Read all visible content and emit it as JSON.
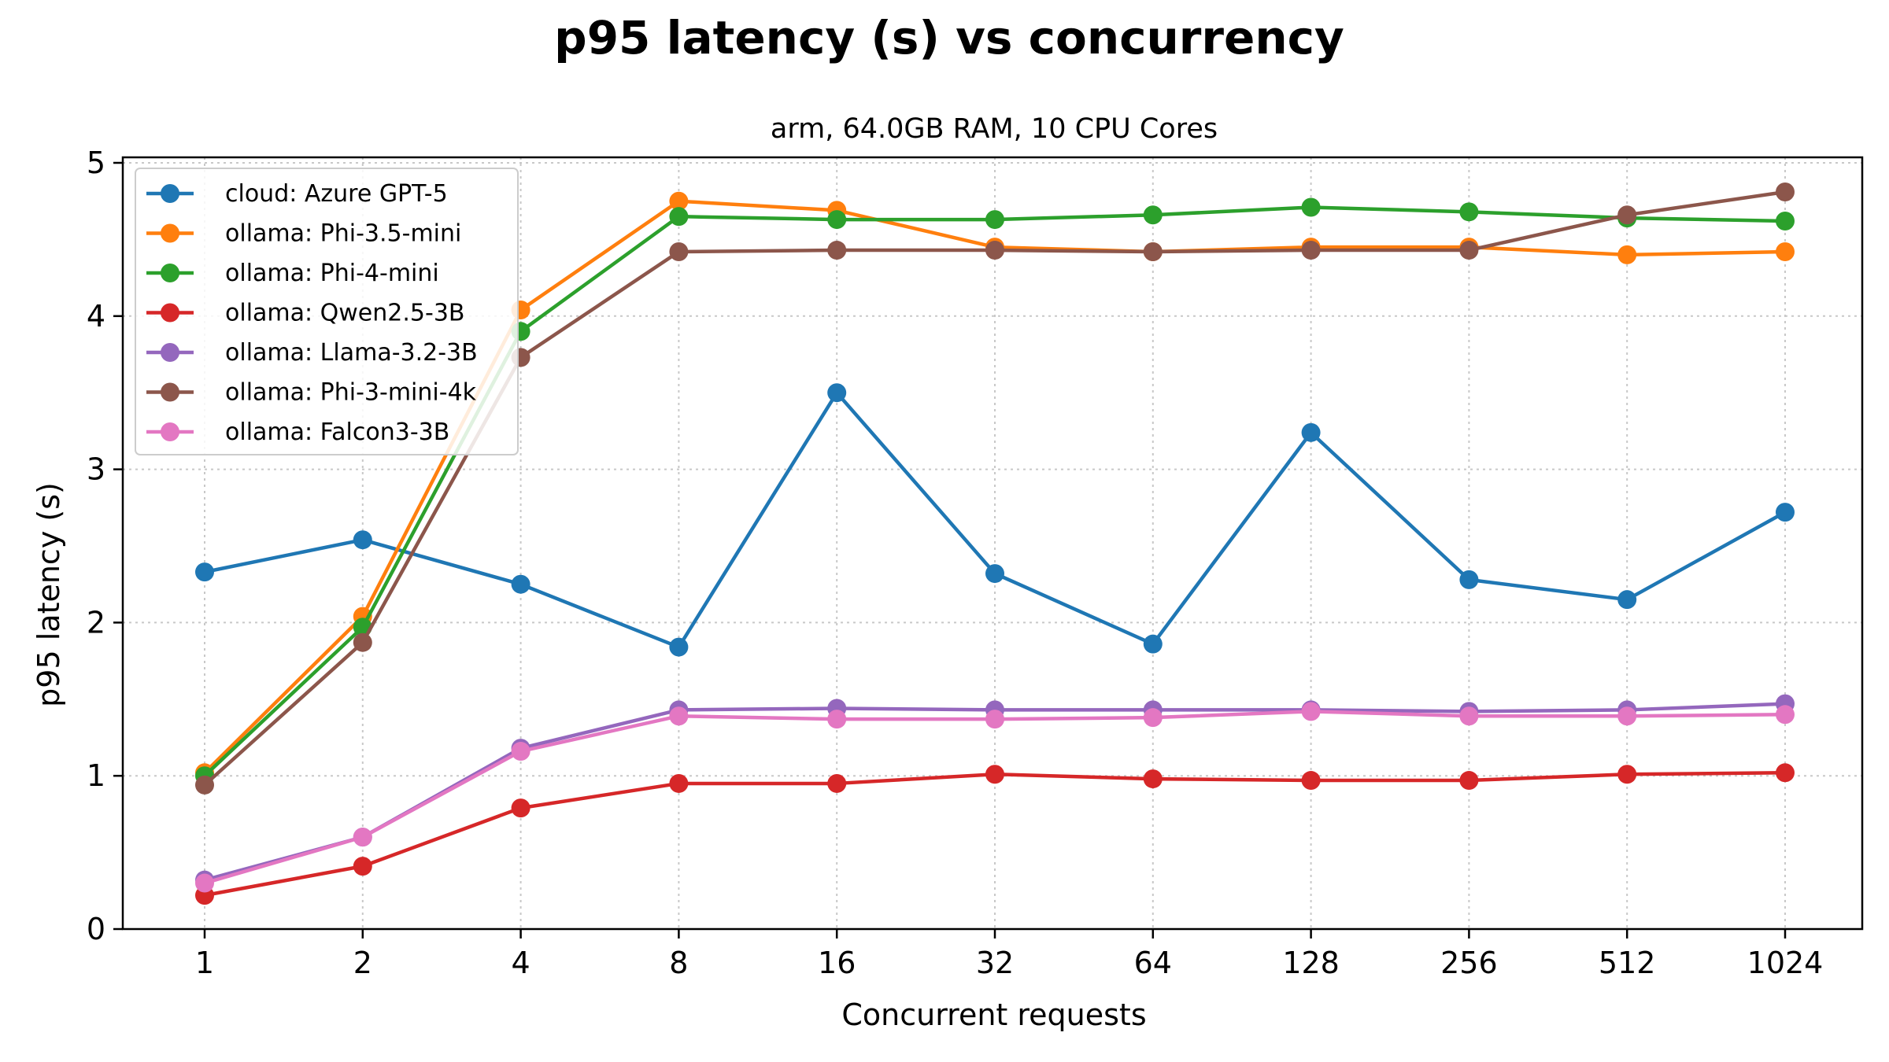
{
  "chart_data": {
    "type": "line",
    "title": "p95 latency (s) vs concurrency",
    "subtitle": "arm, 64.0GB RAM, 10 CPU Cores",
    "xlabel": "Concurrent requests",
    "ylabel": "p95 latency (s)",
    "x_scale": "log2",
    "categories": [
      "1",
      "2",
      "4",
      "8",
      "16",
      "32",
      "64",
      "128",
      "256",
      "512",
      "1024"
    ],
    "y_ticks": [
      "0",
      "1",
      "2",
      "3",
      "4",
      "5"
    ],
    "ylim": [
      0,
      5
    ],
    "grid": true,
    "legend_position": "upper-left",
    "series": [
      {
        "name": "cloud: Azure GPT-5",
        "color": "#1f77b4",
        "values": [
          2.33,
          2.54,
          2.25,
          1.84,
          3.5,
          2.32,
          1.86,
          3.24,
          2.28,
          2.15,
          2.72
        ]
      },
      {
        "name": "ollama: Phi-3.5-mini",
        "color": "#ff7f0e",
        "values": [
          1.02,
          2.04,
          4.04,
          4.75,
          4.69,
          4.45,
          4.42,
          4.45,
          4.45,
          4.4,
          4.42
        ]
      },
      {
        "name": "ollama: Phi-4-mini",
        "color": "#2ca02c",
        "values": [
          1.0,
          1.97,
          3.9,
          4.65,
          4.63,
          4.63,
          4.66,
          4.71,
          4.68,
          4.64,
          4.62
        ]
      },
      {
        "name": "ollama: Qwen2.5-3B",
        "color": "#d62728",
        "values": [
          0.22,
          0.41,
          0.79,
          0.95,
          0.95,
          1.01,
          0.98,
          0.97,
          0.97,
          1.01,
          1.02
        ]
      },
      {
        "name": "ollama: Llama-3.2-3B",
        "color": "#9467bd",
        "values": [
          0.32,
          0.6,
          1.18,
          1.43,
          1.44,
          1.43,
          1.43,
          1.43,
          1.42,
          1.43,
          1.47
        ]
      },
      {
        "name": "ollama: Phi-3-mini-4k",
        "color": "#8c564b",
        "values": [
          0.94,
          1.87,
          3.73,
          4.42,
          4.43,
          4.43,
          4.42,
          4.43,
          4.43,
          4.66,
          4.81
        ]
      },
      {
        "name": "ollama: Falcon3-3B",
        "color": "#e377c2",
        "values": [
          0.3,
          0.6,
          1.16,
          1.39,
          1.37,
          1.37,
          1.38,
          1.42,
          1.39,
          1.39,
          1.4
        ]
      }
    ]
  }
}
